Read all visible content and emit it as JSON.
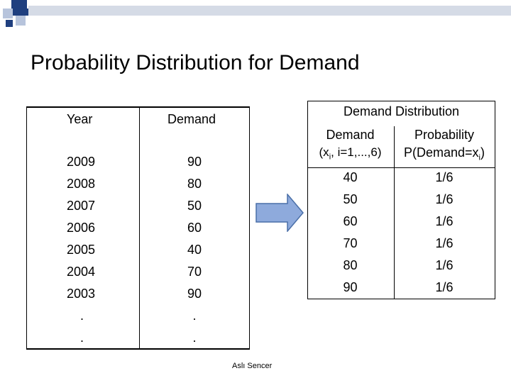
{
  "slide": {
    "title": "Probability Distribution for Demand",
    "footer": "Aslı Sencer"
  },
  "colors": {
    "accent_dark": "#1f3f7f",
    "accent_light": "#b7c4dc",
    "arrow_fill": "#8eaadc",
    "arrow_stroke": "#4a6fa8"
  },
  "left_table": {
    "headers": {
      "year": "Year",
      "demand": "Demand"
    },
    "rows": [
      {
        "year": "2009",
        "demand": "90"
      },
      {
        "year": "2008",
        "demand": "80"
      },
      {
        "year": "2007",
        "demand": "50"
      },
      {
        "year": "2006",
        "demand": "60"
      },
      {
        "year": "2005",
        "demand": "40"
      },
      {
        "year": "2004",
        "demand": "70"
      },
      {
        "year": "2003",
        "demand": "90"
      },
      {
        "year": ".",
        "demand": "."
      },
      {
        "year": ".",
        "demand": "."
      }
    ]
  },
  "right_table": {
    "title": "Demand Distribution",
    "headers": {
      "demand_line1": "Demand",
      "demand_line2_prefix": "(x",
      "demand_line2_sub": "i",
      "demand_line2_suffix": ", i=1,...,6)",
      "prob_line1": "Probability",
      "prob_line2_prefix": "P(Demand=x",
      "prob_line2_sub": "i",
      "prob_line2_suffix": ")"
    },
    "rows": [
      {
        "demand": "40",
        "probability": "1/6"
      },
      {
        "demand": "50",
        "probability": "1/6"
      },
      {
        "demand": "60",
        "probability": "1/6"
      },
      {
        "demand": "70",
        "probability": "1/6"
      },
      {
        "demand": "80",
        "probability": "1/6"
      },
      {
        "demand": "90",
        "probability": "1/6"
      }
    ]
  }
}
